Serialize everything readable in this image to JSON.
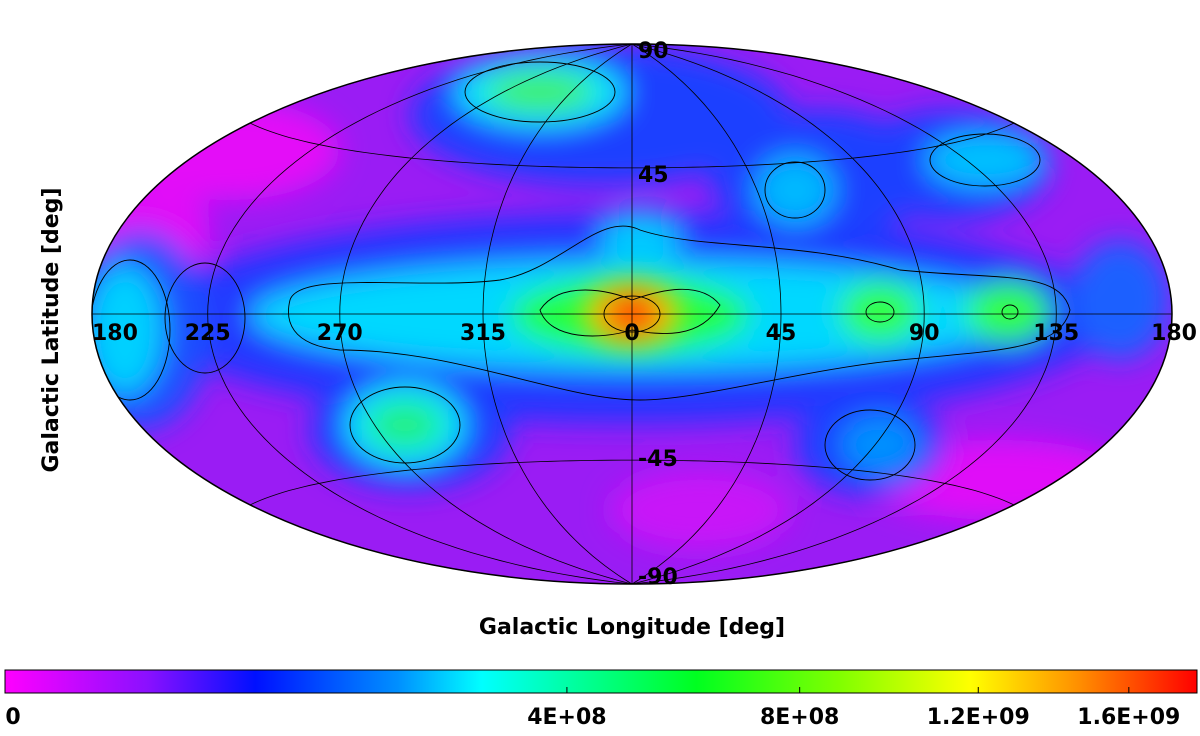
{
  "chart_data": {
    "type": "skymap",
    "projection": "hammer-aitoff",
    "xlabel": "Galactic Longitude [deg]",
    "ylabel": "Galactic Latitude [deg]",
    "xlim": [
      -180,
      180
    ],
    "ylim": [
      -90,
      90
    ],
    "xticks": [
      {
        "value": -180,
        "label": "180"
      },
      {
        "value": -135,
        "label": "225"
      },
      {
        "value": -90,
        "label": "270"
      },
      {
        "value": -45,
        "label": "315"
      },
      0,
      45,
      90,
      135,
      180
    ],
    "yticks": [
      90,
      45,
      -45,
      -90
    ],
    "grid": true,
    "colorbar": {
      "scale": "sqrt",
      "lim": [
        0,
        1800000000
      ],
      "ticks": [
        0,
        {
          "value": 400000000,
          "label": "4E+08"
        },
        {
          "value": 800000000,
          "label": "8E+08"
        },
        {
          "value": 1200000000,
          "label": "1.2E+09"
        },
        {
          "value": 1600000000,
          "label": "1.6E+09"
        }
      ]
    }
  }
}
